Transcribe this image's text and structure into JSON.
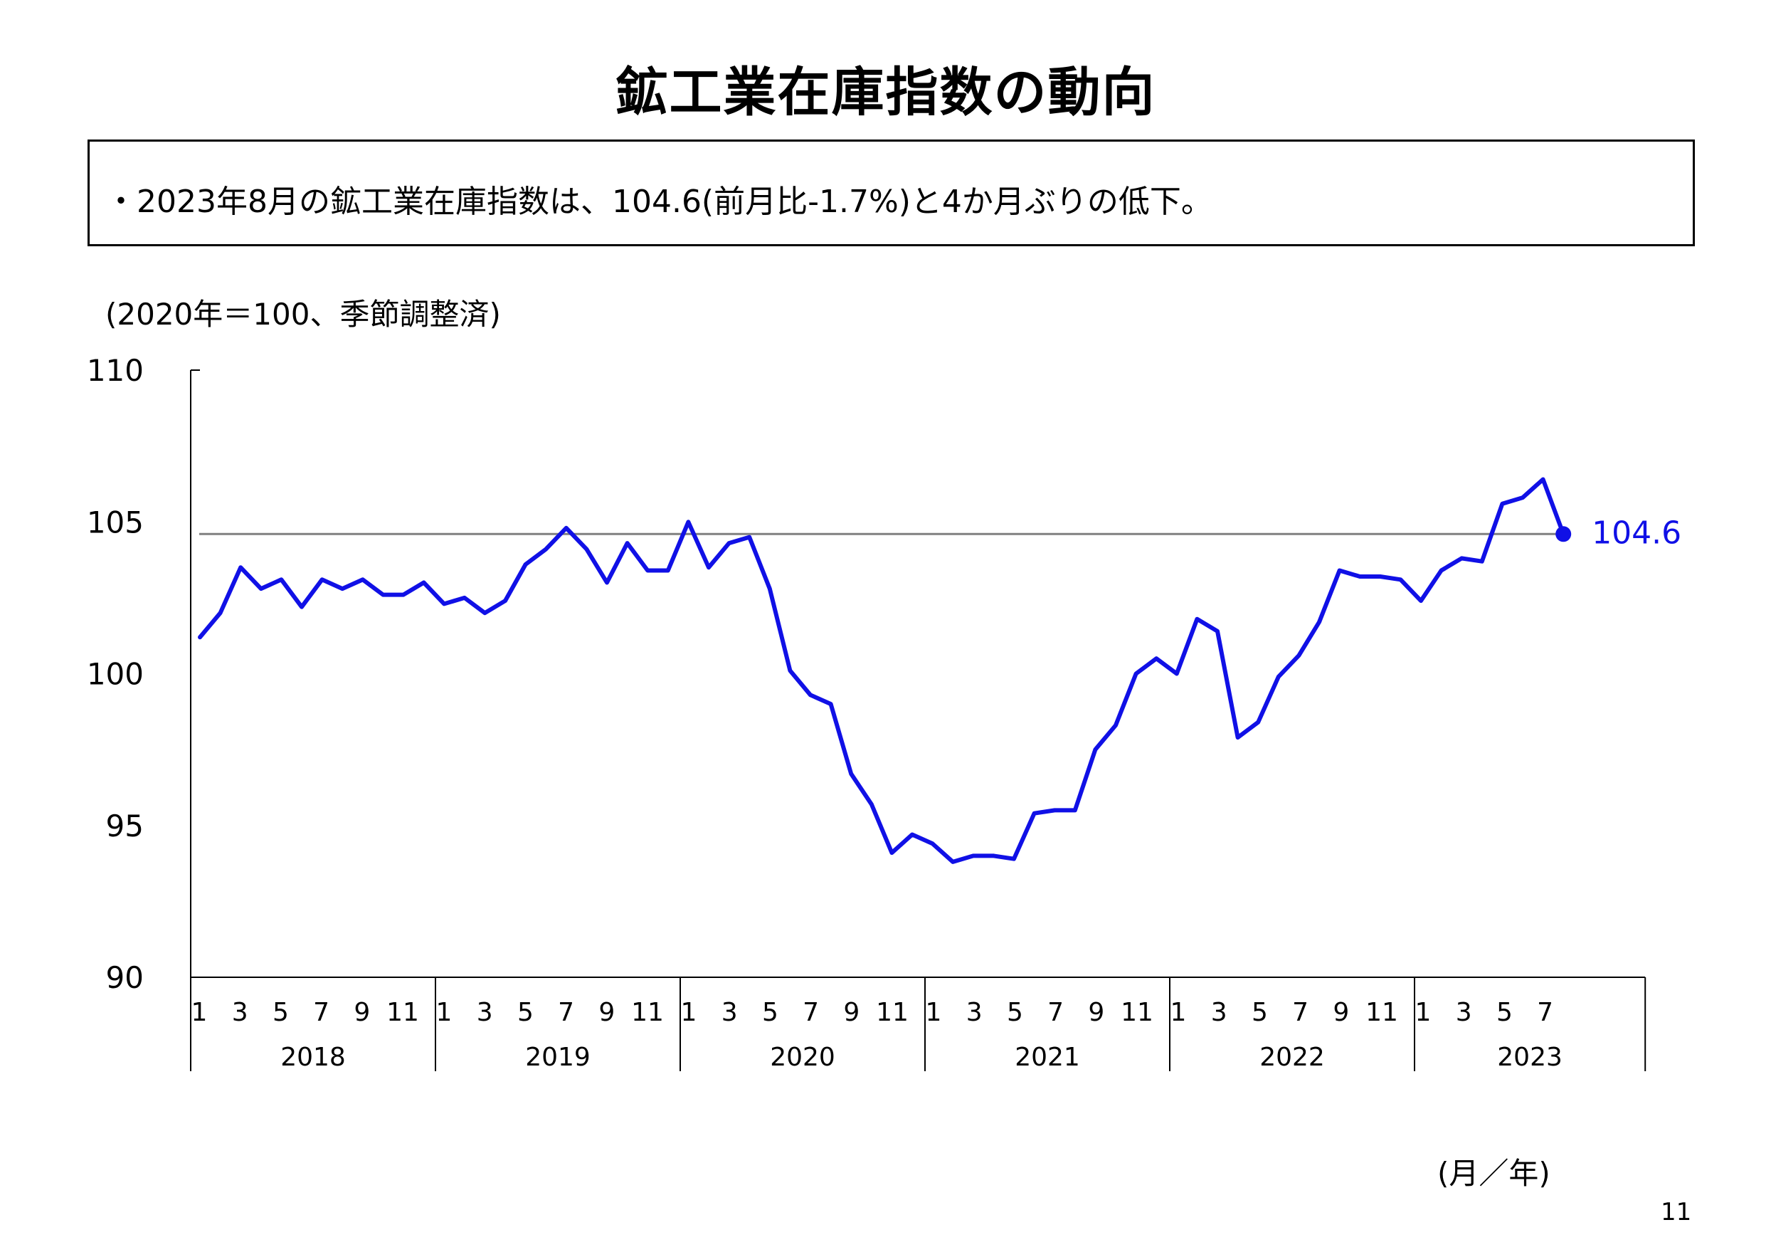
{
  "title": "鉱工業在庫指数の動向",
  "summary": "・2023年8月の鉱工業在庫指数は、104.6(前月比-1.7%)と4か月ぶりの低下。",
  "unit_label": "(2020年＝100、季節調整済)",
  "x_axis_caption": "(月／年)",
  "page_number": "11",
  "colors": {
    "series": "#1010e6",
    "reference_line": "#808080",
    "axis": "#000000"
  },
  "chart_data": {
    "type": "line",
    "ylim": [
      90,
      110
    ],
    "yticks": [
      "90",
      "95",
      "100",
      "105",
      "110"
    ],
    "month_tick_labels": [
      "1",
      "3",
      "5",
      "7",
      "9",
      "11"
    ],
    "month_tick_labels_2023": [
      "1",
      "3",
      "5",
      "7"
    ],
    "years": [
      "2018",
      "2019",
      "2020",
      "2021",
      "2022",
      "2023"
    ],
    "x": [
      "2018-01",
      "2018-02",
      "2018-03",
      "2018-04",
      "2018-05",
      "2018-06",
      "2018-07",
      "2018-08",
      "2018-09",
      "2018-10",
      "2018-11",
      "2018-12",
      "2019-01",
      "2019-02",
      "2019-03",
      "2019-04",
      "2019-05",
      "2019-06",
      "2019-07",
      "2019-08",
      "2019-09",
      "2019-10",
      "2019-11",
      "2019-12",
      "2020-01",
      "2020-02",
      "2020-03",
      "2020-04",
      "2020-05",
      "2020-06",
      "2020-07",
      "2020-08",
      "2020-09",
      "2020-10",
      "2020-11",
      "2020-12",
      "2021-01",
      "2021-02",
      "2021-03",
      "2021-04",
      "2021-05",
      "2021-06",
      "2021-07",
      "2021-08",
      "2021-09",
      "2021-10",
      "2021-11",
      "2021-12",
      "2022-01",
      "2022-02",
      "2022-03",
      "2022-04",
      "2022-05",
      "2022-06",
      "2022-07",
      "2022-08",
      "2022-09",
      "2022-10",
      "2022-11",
      "2022-12",
      "2023-01",
      "2023-02",
      "2023-03",
      "2023-04",
      "2023-05",
      "2023-06",
      "2023-07",
      "2023-08"
    ],
    "values": [
      101.2,
      102.0,
      103.5,
      102.8,
      103.1,
      102.2,
      103.1,
      102.8,
      103.1,
      102.6,
      102.6,
      103.0,
      102.3,
      102.5,
      102.0,
      102.4,
      103.6,
      104.1,
      104.8,
      104.1,
      103.0,
      104.3,
      103.4,
      103.4,
      105.0,
      103.5,
      104.3,
      104.5,
      102.8,
      100.1,
      99.3,
      99.0,
      96.7,
      95.7,
      94.1,
      94.7,
      94.4,
      93.8,
      94.0,
      94.0,
      93.9,
      95.4,
      95.5,
      95.5,
      97.5,
      98.3,
      100.0,
      100.5,
      100.0,
      101.8,
      101.4,
      97.9,
      98.4,
      99.9,
      100.6,
      101.7,
      103.4,
      103.2,
      103.2,
      103.1,
      102.4,
      103.4,
      103.8,
      103.7,
      105.6,
      105.8,
      106.4,
      104.6
    ],
    "reference_value": 104.6,
    "last_value_label": "104.6",
    "grid": false,
    "legend": "none"
  }
}
